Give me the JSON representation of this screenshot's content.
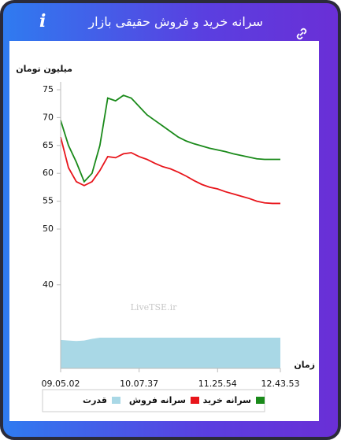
{
  "header": {
    "title": "سرانه خرید و فروش حقیقی بازار",
    "icon": "i"
  },
  "chart_data": {
    "type": "line",
    "y_label": "میلیون تومان",
    "x_label": "زمان",
    "watermark": "LiveTSE.ir",
    "x": [
      0,
      1,
      2,
      3,
      4,
      5,
      6,
      7,
      8,
      9,
      10,
      11,
      12,
      13,
      14,
      15,
      16,
      17,
      18,
      19,
      20,
      21,
      22,
      23,
      24,
      25,
      26,
      27,
      28
    ],
    "xlim": [
      0,
      28
    ],
    "xticks": [
      {
        "value": 0,
        "label": "09.05.02"
      },
      {
        "value": 10,
        "label": "10.07.37"
      },
      {
        "value": 20,
        "label": "11.25.54"
      },
      {
        "value": 28,
        "label": "12.43.53"
      }
    ],
    "ylim": [
      25,
      75
    ],
    "yticks": [
      40,
      50,
      55,
      60,
      65,
      70,
      75
    ],
    "series": [
      {
        "name": "سرانه خرید",
        "color": "#1a8a1a",
        "type": "line",
        "values": [
          69.5,
          65,
          62,
          58.5,
          60,
          65,
          73.5,
          73,
          74,
          73.5,
          72,
          70.5,
          69.5,
          68.5,
          67.5,
          66.5,
          65.8,
          65.3,
          64.9,
          64.5,
          64.2,
          63.9,
          63.5,
          63.2,
          62.9,
          62.6,
          62.5,
          62.5,
          62.5
        ]
      },
      {
        "name": "سرانه فروش",
        "color": "#e8151b",
        "type": "line",
        "values": [
          66.5,
          61,
          58.5,
          57.8,
          58.5,
          60.5,
          63,
          62.8,
          63.5,
          63.7,
          63,
          62.5,
          61.8,
          61.2,
          60.8,
          60.2,
          59.5,
          58.7,
          58,
          57.5,
          57.2,
          56.7,
          56.3,
          55.9,
          55.5,
          55,
          54.7,
          54.6,
          54.6
        ]
      },
      {
        "name": "قدرت",
        "color": "#a9d8e6",
        "type": "area",
        "values": [
          30.1,
          30,
          29.9,
          30,
          30.3,
          30.5,
          30.5,
          30.5,
          30.5,
          30.5,
          30.5,
          30.5,
          30.5,
          30.5,
          30.5,
          30.5,
          30.5,
          30.5,
          30.5,
          30.5,
          30.5,
          30.5,
          30.5,
          30.5,
          30.5,
          30.5,
          30.5,
          30.5,
          30.5
        ]
      }
    ]
  }
}
